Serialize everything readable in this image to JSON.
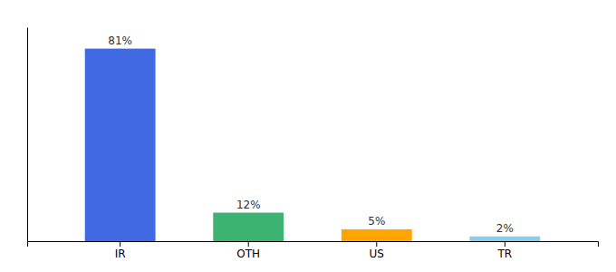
{
  "chart_data": {
    "type": "bar",
    "categories": [
      "IR",
      "OTH",
      "US",
      "TR"
    ],
    "values": [
      81,
      12,
      5,
      2
    ],
    "value_labels": [
      "81%",
      "12%",
      "5%",
      "2%"
    ],
    "colors": [
      "#4169E1",
      "#3CB371",
      "#FFA500",
      "#87CEEB"
    ],
    "ylim": [
      0,
      90
    ],
    "grid": false,
    "data_labels": true,
    "tick_labels": "x"
  }
}
